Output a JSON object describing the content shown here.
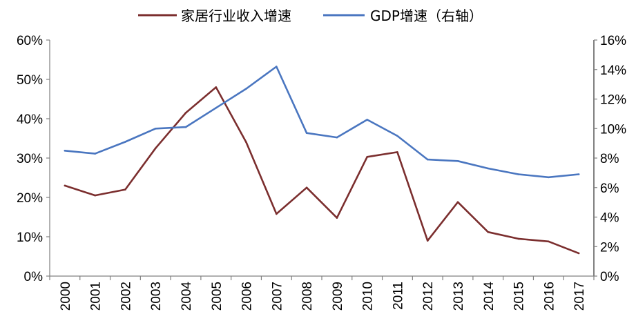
{
  "chart_data": {
    "type": "line",
    "categories": [
      "2000",
      "2001",
      "2002",
      "2003",
      "2004",
      "2005",
      "2006",
      "2007",
      "2008",
      "2009",
      "2010",
      "2011",
      "2012",
      "2013",
      "2014",
      "2015",
      "2016",
      "2017"
    ],
    "series": [
      {
        "name": "家居行业收入增速",
        "axis": "left",
        "color": "#7b2e2e",
        "values": [
          23.0,
          20.5,
          22.0,
          32.5,
          41.5,
          48.0,
          34.0,
          15.8,
          22.5,
          14.8,
          30.3,
          31.5,
          9.0,
          18.8,
          11.2,
          9.5,
          8.8,
          5.8
        ]
      },
      {
        "name": "GDP增速（右轴）",
        "axis": "right",
        "color": "#4a76c0",
        "values": [
          8.5,
          8.3,
          9.1,
          10.0,
          10.1,
          11.4,
          12.7,
          14.2,
          9.7,
          9.4,
          10.6,
          9.5,
          7.9,
          7.8,
          7.3,
          6.9,
          6.7,
          6.9
        ]
      }
    ],
    "y_left": {
      "ylim": [
        0,
        60
      ],
      "ticks": [
        "0%",
        "10%",
        "20%",
        "30%",
        "40%",
        "50%",
        "60%"
      ]
    },
    "y_right": {
      "ylim": [
        0,
        16
      ],
      "ticks": [
        "0%",
        "2%",
        "4%",
        "6%",
        "8%",
        "10%",
        "12%",
        "14%",
        "16%"
      ]
    },
    "grid": false,
    "legend": "top-center"
  }
}
